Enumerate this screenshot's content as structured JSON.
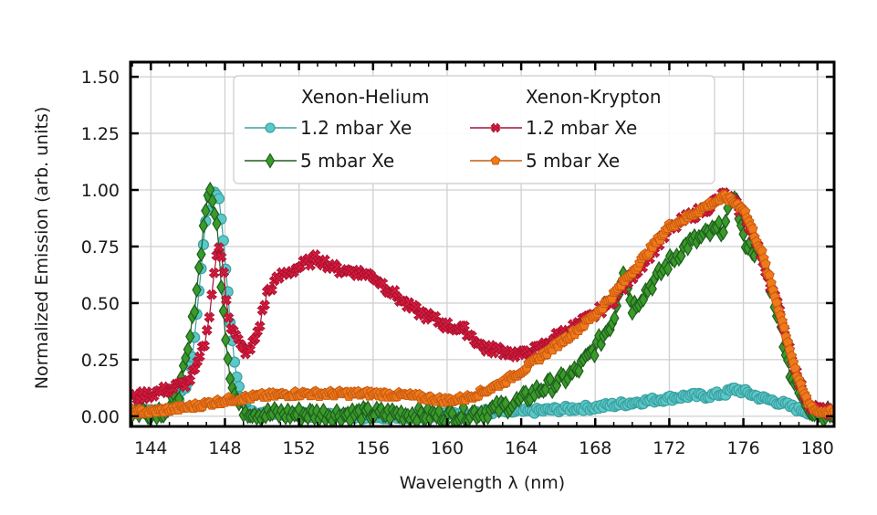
{
  "chart_data": {
    "type": "line",
    "title": "",
    "xlabel": "Wavelength λ (nm)",
    "ylabel": "Normalized Emission (arb. units)",
    "xlim": [
      142.9,
      180.9
    ],
    "ylim": [
      -0.045,
      1.565
    ],
    "xticks": [
      144,
      148,
      152,
      156,
      160,
      164,
      168,
      172,
      176,
      180
    ],
    "xtick_labels": [
      "144",
      "148",
      "152",
      "156",
      "160",
      "164",
      "168",
      "172",
      "176",
      "180"
    ],
    "yticks": [
      0.0,
      0.25,
      0.5,
      0.75,
      1.0,
      1.25,
      1.5
    ],
    "ytick_labels": [
      "0.00",
      "0.25",
      "0.50",
      "0.75",
      "1.00",
      "1.25",
      "1.50"
    ],
    "grid": true,
    "legend": {
      "placement": "top-center",
      "group_titles": [
        "Xenon-Helium",
        "Xenon-Krypton"
      ]
    },
    "series": [
      {
        "name": "1.2 mbar Xe",
        "group": "Xenon-Helium",
        "color": "#5cc8c8",
        "edge": "#3aa0a0",
        "marker": "circle",
        "x": [
          143.0,
          144.0,
          145.0,
          145.5,
          146.0,
          146.3,
          146.6,
          146.9,
          147.2,
          147.5,
          147.7,
          147.9,
          148.1,
          148.3,
          148.5,
          148.7,
          148.9,
          149.2,
          149.6,
          150,
          152,
          154,
          156,
          158,
          160,
          162,
          163,
          164,
          166,
          168,
          170,
          172,
          173,
          174,
          175,
          175.5,
          176,
          177,
          178,
          179,
          179.5,
          180,
          180.5,
          180.9
        ],
        "y": [
          0.02,
          0.02,
          0.03,
          0.08,
          0.15,
          0.3,
          0.55,
          0.82,
          0.97,
          1.0,
          0.95,
          0.8,
          0.6,
          0.4,
          0.25,
          0.15,
          0.08,
          0.04,
          0.02,
          0.01,
          0.01,
          0.0,
          0.0,
          0.0,
          0.01,
          0.02,
          0.02,
          0.02,
          0.03,
          0.04,
          0.06,
          0.08,
          0.09,
          0.09,
          0.1,
          0.12,
          0.11,
          0.08,
          0.06,
          0.03,
          0.02,
          0.01,
          0.01,
          0.01
        ]
      },
      {
        "name": "5 mbar Xe",
        "group": "Xenon-Helium",
        "color": "#3a9a2a",
        "edge": "#1e5e1e",
        "marker": "diamond",
        "x": [
          143.0,
          144.0,
          145.0,
          145.5,
          146.0,
          146.3,
          146.6,
          146.9,
          147.1,
          147.3,
          147.5,
          147.7,
          147.9,
          148.1,
          148.3,
          148.5,
          148.7,
          149.0,
          149.5,
          150,
          152,
          154,
          156,
          158,
          160,
          162,
          163,
          164,
          165,
          166,
          167,
          168,
          169,
          169.5,
          170,
          171,
          172,
          173,
          174,
          175,
          175.5,
          176,
          177,
          177.5,
          178,
          178.5,
          179,
          179.5,
          180,
          180.5,
          180.9
        ],
        "y": [
          0.02,
          0.02,
          0.03,
          0.1,
          0.28,
          0.45,
          0.65,
          0.88,
          1.0,
          0.95,
          0.9,
          0.7,
          0.5,
          0.3,
          0.18,
          0.1,
          0.06,
          0.03,
          0.02,
          0.01,
          0.01,
          0.01,
          0.01,
          0.01,
          0.0,
          0.02,
          0.04,
          0.07,
          0.12,
          0.15,
          0.2,
          0.3,
          0.43,
          0.66,
          0.48,
          0.58,
          0.68,
          0.76,
          0.8,
          0.84,
          1.0,
          0.78,
          0.7,
          0.56,
          0.4,
          0.2,
          0.1,
          0.04,
          0.02,
          0.01,
          0.01
        ]
      },
      {
        "name": "1.2 mbar Xe",
        "group": "Xenon-Krypton",
        "color": "#d81b3c",
        "edge": "#a81030",
        "marker": "x",
        "x": [
          143.0,
          144.0,
          145.0,
          146.0,
          146.5,
          147.0,
          147.3,
          147.6,
          147.9,
          148.1,
          148.3,
          148.6,
          148.9,
          149.3,
          149.8,
          150.3,
          151,
          152,
          153,
          154,
          155,
          156,
          157,
          158,
          159,
          160,
          161,
          162,
          163,
          164,
          165,
          166,
          167,
          168,
          169,
          170,
          171,
          172,
          173,
          174,
          175,
          176,
          177,
          178,
          178.5,
          179,
          179.5,
          180,
          180.5,
          180.9
        ],
        "y": [
          0.08,
          0.1,
          0.12,
          0.15,
          0.22,
          0.35,
          0.55,
          0.75,
          0.68,
          0.5,
          0.4,
          0.35,
          0.3,
          0.28,
          0.38,
          0.55,
          0.62,
          0.66,
          0.7,
          0.65,
          0.64,
          0.62,
          0.55,
          0.48,
          0.44,
          0.4,
          0.38,
          0.3,
          0.29,
          0.27,
          0.3,
          0.36,
          0.4,
          0.45,
          0.52,
          0.62,
          0.72,
          0.82,
          0.88,
          0.92,
          0.98,
          0.9,
          0.7,
          0.45,
          0.3,
          0.15,
          0.06,
          0.03,
          0.02,
          0.02
        ]
      },
      {
        "name": "5 mbar Xe",
        "group": "Xenon-Krypton",
        "color": "#f07a1a",
        "edge": "#c85a10",
        "marker": "pentagon",
        "x": [
          143.0,
          144.0,
          146.0,
          148.0,
          150,
          152,
          154,
          156,
          158,
          160,
          161,
          162,
          163,
          164,
          165,
          166,
          167,
          168,
          169,
          170,
          171,
          172,
          173,
          174,
          175,
          176,
          177,
          178,
          178.5,
          179,
          179.5,
          180,
          180.5,
          180.9
        ],
        "y": [
          0.02,
          0.02,
          0.04,
          0.07,
          0.09,
          0.1,
          0.1,
          0.1,
          0.09,
          0.07,
          0.08,
          0.11,
          0.15,
          0.2,
          0.26,
          0.32,
          0.38,
          0.45,
          0.54,
          0.64,
          0.74,
          0.84,
          0.88,
          0.93,
          0.97,
          0.92,
          0.72,
          0.45,
          0.3,
          0.15,
          0.06,
          0.02,
          0.02,
          0.02
        ]
      }
    ]
  }
}
